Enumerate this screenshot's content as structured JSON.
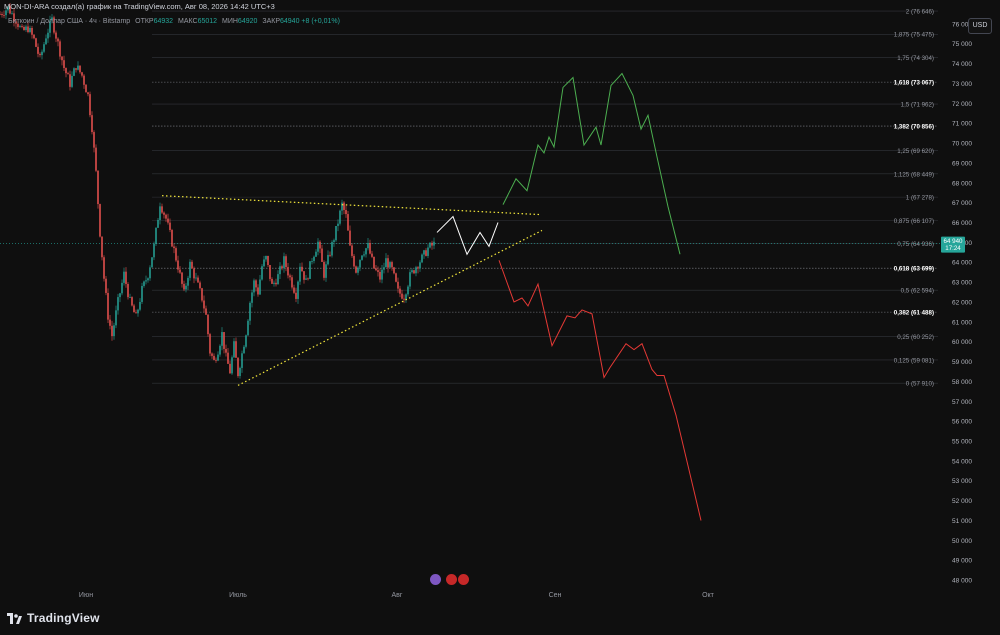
{
  "header": {
    "caption": "MON-DI-ARA создал(а) график на TradingView.com, Авг 08, 2026 14:42 UTC+3",
    "symbol": "Биткоин / Доллар США · 4ч · Bitstamp",
    "open_label": "ОТКР",
    "open_value": "64932",
    "high_label": "МАКС",
    "high_value": "65012",
    "low_label": "МИН",
    "low_value": "64920",
    "close_label": "ЗАКР",
    "close_value": "64940",
    "change": "+8 (+0,01%)",
    "currency": "USD"
  },
  "footer": {
    "brand": "TradingView"
  },
  "chart_data": {
    "type": "candlestick",
    "ylim": [
      47500,
      77000
    ],
    "y_ticks": [
      76000,
      75000,
      74000,
      73000,
      72000,
      71000,
      70000,
      69000,
      68000,
      67000,
      66000,
      65000,
      64000,
      63000,
      62000,
      61000,
      60000,
      59000,
      58000,
      57000,
      56000,
      55000,
      54000,
      53000,
      52000,
      51000,
      50000,
      49000,
      48000
    ],
    "x_ticks": [
      "Июн",
      "Июль",
      "Авг",
      "Сен",
      "Окт"
    ],
    "last_price": {
      "value": 64940,
      "label": "64 940",
      "timer": "17:24"
    },
    "fib_levels": [
      {
        "label": "2 (76 646)",
        "value": 76646,
        "major": false
      },
      {
        "label": "1,875 (75 475)",
        "value": 75475,
        "major": false
      },
      {
        "label": "1,75 (74 304)",
        "value": 74304,
        "major": false
      },
      {
        "label": "1,618 (73 067)",
        "value": 73067,
        "major": true
      },
      {
        "label": "1,5 (71 962)",
        "value": 71962,
        "major": false
      },
      {
        "label": "1,382 (70 856)",
        "value": 70856,
        "major": true
      },
      {
        "label": "1,25 (69 620)",
        "value": 69620,
        "major": false
      },
      {
        "label": "1,125 (68 449)",
        "value": 68449,
        "major": false
      },
      {
        "label": "1 (67 278)",
        "value": 67278,
        "major": false
      },
      {
        "label": "0,875 (66 107)",
        "value": 66107,
        "major": false
      },
      {
        "label": "0,75 (64 936)",
        "value": 64936,
        "major": false
      },
      {
        "label": "0,618 (63 699)",
        "value": 63699,
        "major": true
      },
      {
        "label": "0,5 (62 594)",
        "value": 62594,
        "major": false
      },
      {
        "label": "0,382 (61 488)",
        "value": 61488,
        "major": true
      },
      {
        "label": "0,25 (60 252)",
        "value": 60252,
        "major": false
      },
      {
        "label": "0,125 (59 081)",
        "value": 59081,
        "major": false
      },
      {
        "label": "0 (57 910)",
        "value": 57910,
        "major": false
      }
    ],
    "price_path": [
      [
        0,
        76500
      ],
      [
        8,
        76800
      ],
      [
        16,
        76200
      ],
      [
        22,
        75600
      ],
      [
        28,
        75800
      ],
      [
        34,
        75200
      ],
      [
        40,
        74200
      ],
      [
        46,
        75400
      ],
      [
        52,
        76200
      ],
      [
        58,
        75000
      ],
      [
        64,
        73800
      ],
      [
        70,
        73000
      ],
      [
        76,
        73900
      ],
      [
        82,
        73400
      ],
      [
        88,
        72400
      ],
      [
        92,
        70800
      ],
      [
        96,
        68500
      ],
      [
        100,
        65500
      ],
      [
        104,
        63200
      ],
      [
        108,
        61300
      ],
      [
        112,
        60300
      ],
      [
        118,
        62000
      ],
      [
        124,
        63400
      ],
      [
        130,
        62000
      ],
      [
        136,
        61200
      ],
      [
        142,
        62600
      ],
      [
        148,
        63400
      ],
      [
        154,
        64800
      ],
      [
        160,
        67000
      ],
      [
        166,
        66200
      ],
      [
        172,
        65000
      ],
      [
        178,
        63800
      ],
      [
        184,
        62400
      ],
      [
        190,
        63900
      ],
      [
        196,
        63100
      ],
      [
        202,
        62200
      ],
      [
        206,
        61300
      ],
      [
        210,
        59500
      ],
      [
        214,
        59000
      ],
      [
        218,
        59600
      ],
      [
        222,
        60400
      ],
      [
        226,
        59200
      ],
      [
        230,
        58500
      ],
      [
        234,
        59800
      ],
      [
        238,
        58400
      ],
      [
        242,
        59400
      ],
      [
        246,
        60500
      ],
      [
        250,
        62000
      ],
      [
        254,
        63000
      ],
      [
        258,
        62500
      ],
      [
        262,
        63800
      ],
      [
        266,
        64200
      ],
      [
        272,
        62800
      ],
      [
        278,
        63300
      ],
      [
        284,
        64100
      ],
      [
        290,
        63200
      ],
      [
        296,
        62400
      ],
      [
        300,
        63900
      ],
      [
        306,
        63000
      ],
      [
        312,
        64200
      ],
      [
        318,
        65000
      ],
      [
        324,
        63400
      ],
      [
        330,
        64500
      ],
      [
        336,
        65600
      ],
      [
        342,
        66900
      ],
      [
        346,
        66300
      ],
      [
        350,
        64700
      ],
      [
        356,
        63600
      ],
      [
        362,
        64500
      ],
      [
        368,
        64800
      ],
      [
        374,
        63700
      ],
      [
        380,
        63200
      ],
      [
        386,
        64100
      ],
      [
        392,
        63600
      ],
      [
        398,
        62500
      ],
      [
        404,
        62300
      ],
      [
        410,
        63300
      ],
      [
        416,
        63800
      ],
      [
        422,
        64200
      ],
      [
        428,
        64700
      ],
      [
        434,
        64900
      ]
    ],
    "trendline_upper": [
      [
        162,
        67350
      ],
      [
        540,
        66400
      ]
    ],
    "trendline_lower": [
      [
        238,
        57800
      ],
      [
        542,
        65600
      ]
    ],
    "projection_white": [
      [
        437,
        65500
      ],
      [
        453,
        66300
      ],
      [
        467,
        64400
      ],
      [
        480,
        65500
      ],
      [
        489,
        64800
      ],
      [
        498,
        66000
      ]
    ],
    "projection_green": [
      [
        503,
        66900
      ],
      [
        516,
        68200
      ],
      [
        527,
        67600
      ],
      [
        538,
        69900
      ],
      [
        544,
        69500
      ],
      [
        549,
        70300
      ],
      [
        554,
        69800
      ],
      [
        563,
        72800
      ],
      [
        573,
        73300
      ],
      [
        584,
        69900
      ],
      [
        596,
        70800
      ],
      [
        601,
        69900
      ],
      [
        611,
        72900
      ],
      [
        622,
        73500
      ],
      [
        633,
        72400
      ],
      [
        641,
        70700
      ],
      [
        648,
        71400
      ],
      [
        657,
        69300
      ],
      [
        668,
        66800
      ],
      [
        680,
        64400
      ]
    ],
    "projection_red": [
      [
        499,
        64100
      ],
      [
        514,
        62000
      ],
      [
        522,
        62200
      ],
      [
        528,
        61800
      ],
      [
        538,
        62900
      ],
      [
        552,
        59800
      ],
      [
        567,
        61300
      ],
      [
        575,
        61200
      ],
      [
        582,
        61600
      ],
      [
        592,
        61400
      ],
      [
        604,
        58200
      ],
      [
        610,
        58700
      ],
      [
        626,
        59900
      ],
      [
        634,
        59600
      ],
      [
        642,
        59900
      ],
      [
        652,
        58600
      ],
      [
        657,
        58300
      ],
      [
        664,
        58300
      ],
      [
        676,
        56300
      ],
      [
        701,
        51000
      ]
    ]
  }
}
